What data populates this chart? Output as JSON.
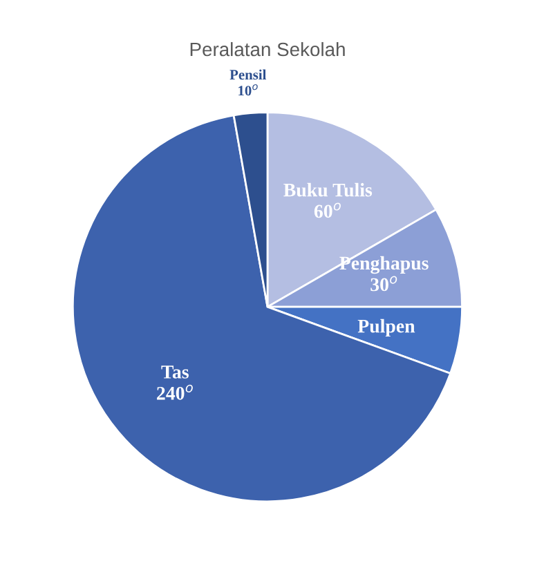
{
  "chart_data": {
    "type": "pie",
    "title": "Peralatan Sekolah",
    "categories": [
      "Buku Tulis",
      "Penghapus",
      "Pulpen",
      "Tas",
      "Pensil"
    ],
    "values": [
      60,
      30,
      20,
      240,
      10
    ],
    "value_labels": [
      "60$^{o}$",
      "30$^{o}$",
      null,
      "240$^{o}$",
      "10$^{o}$"
    ],
    "colors": [
      "#b4bee2",
      "#8c9fd6",
      "#4472c4",
      "#3d62ad",
      "#2d4f8e"
    ]
  }
}
